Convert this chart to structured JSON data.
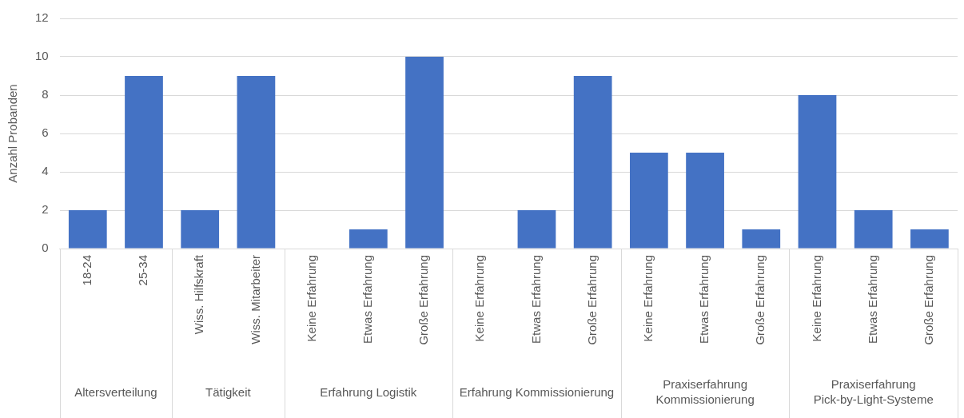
{
  "chart_data": {
    "type": "bar",
    "ylabel": "Anzahl Probanden",
    "categories": [
      "18-24",
      "25-34",
      "Wiss. Hilfskraft",
      "Wiss. Mitarbeiter",
      "Keine Erfahrung",
      "Etwas Erfahrung",
      "Große Erfahrung",
      "Keine Erfahrung",
      "Etwas Erfahrung",
      "Große Erfahrung",
      "Keine Erfahrung",
      "Etwas Erfahrung",
      "Große Erfahrung",
      "Keine Erfahrung",
      "Etwas Erfahrung",
      "Große Erfahrung"
    ],
    "values": [
      2,
      9,
      2,
      9,
      0,
      1,
      10,
      0,
      2,
      9,
      5,
      5,
      1,
      8,
      2,
      1
    ],
    "color": "#4472c4",
    "ylim": [
      0,
      12
    ],
    "yticks": [
      0,
      2,
      4,
      6,
      8,
      10,
      12
    ],
    "grid": "y",
    "legend": false,
    "annotations": [
      "Altersverteilung",
      "Tätigkeit",
      "Erfahrung Logistik",
      "Erfahrung Kommissionierung",
      "Praxiserfahrung Kommissionierung",
      "Praxiserfahrung Pick-by-Light-Systeme"
    ]
  }
}
